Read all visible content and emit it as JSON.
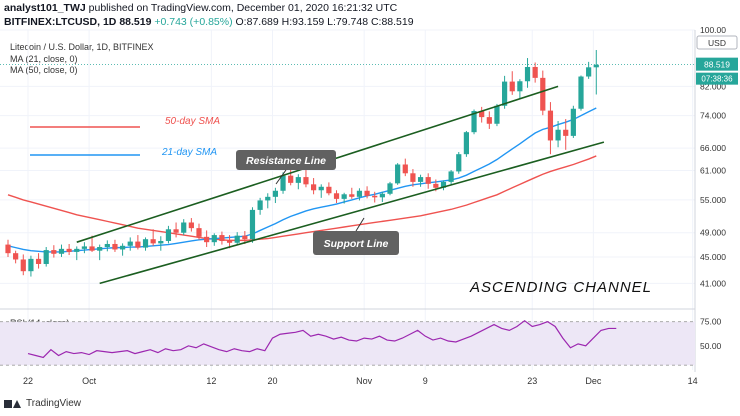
{
  "header": {
    "author": "analyst101_TWJ",
    "published_text": "published on TradingView.com, December 01, 2020 16:21:32 UTC",
    "symbol": "BITFINEX:LTCUSD, 1D",
    "last": "88.519",
    "change": "+0.743 (+0.85%)",
    "ohlc": "O:87.689 H:93.159 L:79.748 C:88.519"
  },
  "legend": {
    "title": "Litecoin / U.S. Dollar, 1D, BITFINEX",
    "ma21": "MA (21, close, 0)",
    "ma50": "MA (50, close, 0)",
    "rsi": "RSI (14, close)"
  },
  "currency_badge": "USD",
  "price_badge": "88.519",
  "time_badge": "07:38:36",
  "footer": {
    "brand": "TradingView"
  },
  "colors": {
    "up": "#26a69a",
    "down": "#ef5350",
    "ma21": "#2196f3",
    "ma50": "#ef5350",
    "rsi": "#9c27b0",
    "rsi_band": "#ede7f6",
    "channel": "#1b5e20",
    "badge": "#2196f3"
  },
  "chart_data": {
    "type": "candlestick",
    "price_range": [
      38,
      100
    ],
    "price_ticks": [
      "100.00",
      "88.519",
      "82.000",
      "74.000",
      "66.000",
      "61.000",
      "55.000",
      "49.000",
      "45.000",
      "41.000"
    ],
    "price_tick_values": [
      100,
      88.519,
      82,
      74,
      66,
      61,
      55,
      49,
      45,
      41
    ],
    "x_labels": [
      {
        "label": "22",
        "bar": 0
      },
      {
        "label": "Oct",
        "bar": 8
      },
      {
        "label": "12",
        "bar": 24
      },
      {
        "label": "20",
        "bar": 32
      },
      {
        "label": "Nov",
        "bar": 44
      },
      {
        "label": "9",
        "bar": 52
      },
      {
        "label": "23",
        "bar": 66
      },
      {
        "label": "Dec",
        "bar": 74
      },
      {
        "label": "14",
        "bar": 87
      }
    ],
    "candles": [
      [
        47.0,
        47.8,
        45.0,
        45.6
      ],
      [
        45.6,
        46.0,
        44.0,
        44.6
      ],
      [
        44.6,
        45.4,
        42.2,
        42.8
      ],
      [
        42.8,
        45.2,
        42.0,
        44.7
      ],
      [
        44.7,
        45.6,
        43.2,
        43.9
      ],
      [
        43.9,
        46.6,
        43.5,
        46.1
      ],
      [
        46.1,
        46.9,
        44.9,
        45.5
      ],
      [
        45.5,
        47.0,
        45.0,
        46.3
      ],
      [
        46.3,
        47.1,
        45.3,
        45.8
      ],
      [
        45.8,
        46.7,
        44.5,
        46.3
      ],
      [
        46.3,
        47.4,
        45.6,
        46.7
      ],
      [
        46.7,
        48.5,
        45.8,
        46.0
      ],
      [
        46.0,
        47.0,
        44.5,
        46.6
      ],
      [
        46.6,
        47.7,
        45.9,
        47.1
      ],
      [
        47.1,
        47.8,
        45.8,
        46.2
      ],
      [
        46.2,
        47.2,
        45.2,
        46.8
      ],
      [
        46.8,
        48.2,
        46.0,
        47.5
      ],
      [
        47.5,
        48.6,
        46.2,
        46.5
      ],
      [
        46.5,
        48.2,
        46.0,
        47.9
      ],
      [
        47.9,
        49.6,
        46.8,
        47.2
      ],
      [
        47.2,
        48.4,
        46.0,
        47.6
      ],
      [
        47.6,
        50.2,
        47.2,
        49.6
      ],
      [
        49.6,
        50.8,
        48.2,
        49.0
      ],
      [
        49.0,
        51.4,
        48.6,
        50.8
      ],
      [
        50.8,
        51.6,
        49.2,
        49.8
      ],
      [
        49.8,
        50.6,
        47.8,
        48.3
      ],
      [
        48.3,
        49.4,
        46.6,
        47.4
      ],
      [
        47.4,
        48.9,
        46.8,
        48.6
      ],
      [
        48.6,
        49.2,
        47.0,
        47.6
      ],
      [
        47.6,
        48.6,
        46.4,
        47.3
      ],
      [
        47.3,
        49.1,
        46.9,
        48.5
      ],
      [
        48.5,
        49.3,
        47.1,
        47.9
      ],
      [
        47.9,
        53.6,
        47.3,
        53.1
      ],
      [
        53.1,
        55.4,
        52.2,
        54.9
      ],
      [
        54.9,
        56.3,
        53.4,
        55.6
      ],
      [
        55.6,
        57.4,
        54.4,
        56.8
      ],
      [
        56.8,
        60.6,
        56.2,
        59.9
      ],
      [
        59.9,
        61.6,
        57.9,
        58.4
      ],
      [
        58.4,
        60.2,
        57.1,
        59.6
      ],
      [
        59.6,
        61.1,
        57.5,
        58.1
      ],
      [
        58.1,
        59.4,
        56.1,
        56.9
      ],
      [
        56.9,
        58.1,
        55.4,
        57.6
      ],
      [
        57.6,
        58.5,
        55.9,
        56.3
      ],
      [
        56.3,
        56.9,
        54.4,
        55.2
      ],
      [
        55.2,
        56.4,
        54.3,
        56.1
      ],
      [
        56.1,
        57.4,
        55.2,
        55.6
      ],
      [
        55.6,
        57.3,
        54.9,
        56.8
      ],
      [
        56.8,
        57.7,
        55.3,
        55.8
      ],
      [
        55.8,
        56.6,
        54.5,
        55.5
      ],
      [
        55.5,
        56.6,
        54.6,
        56.2
      ],
      [
        56.2,
        58.6,
        55.9,
        58.3
      ],
      [
        58.3,
        62.6,
        58.0,
        62.3
      ],
      [
        62.3,
        63.6,
        59.8,
        60.4
      ],
      [
        60.4,
        61.3,
        57.6,
        58.6
      ],
      [
        58.6,
        60.1,
        57.6,
        59.6
      ],
      [
        59.6,
        60.4,
        57.2,
        58.2
      ],
      [
        58.2,
        59.1,
        56.7,
        57.4
      ],
      [
        57.4,
        58.9,
        56.9,
        58.6
      ],
      [
        58.6,
        61.1,
        58.1,
        60.8
      ],
      [
        60.8,
        65.1,
        60.3,
        64.6
      ],
      [
        64.6,
        70.1,
        64.0,
        69.8
      ],
      [
        69.8,
        75.6,
        69.3,
        75.2
      ],
      [
        75.2,
        76.3,
        72.2,
        73.6
      ],
      [
        73.6,
        75.1,
        70.6,
        71.9
      ],
      [
        71.9,
        77.1,
        71.3,
        76.6
      ],
      [
        76.6,
        85.1,
        75.8,
        83.4
      ],
      [
        83.4,
        86.5,
        79.6,
        80.6
      ],
      [
        80.6,
        84.1,
        78.6,
        83.5
      ],
      [
        83.5,
        90.6,
        81.6,
        87.8
      ],
      [
        87.8,
        89.2,
        83.1,
        84.5
      ],
      [
        84.5,
        86.7,
        74.1,
        75.3
      ],
      [
        75.3,
        77.6,
        64.6,
        67.8
      ],
      [
        67.8,
        72.6,
        66.2,
        70.4
      ],
      [
        70.4,
        73.1,
        65.6,
        68.9
      ],
      [
        68.9,
        76.6,
        68.4,
        75.8
      ],
      [
        75.8,
        85.2,
        75.3,
        84.9
      ],
      [
        84.9,
        89.4,
        84.2,
        87.7
      ],
      [
        87.7,
        93.2,
        79.7,
        88.5
      ]
    ],
    "ma21": [
      46.8,
      46.5,
      46.2,
      46.0,
      45.9,
      45.8,
      45.8,
      45.8,
      45.9,
      46.0,
      46.1,
      46.2,
      46.3,
      46.4,
      46.5,
      46.5,
      46.6,
      46.6,
      46.7,
      46.8,
      46.9,
      47.0,
      47.2,
      47.4,
      47.6,
      47.8,
      47.9,
      48.0,
      48.1,
      48.2,
      48.3,
      48.4,
      48.8,
      49.4,
      50.0,
      50.6,
      51.3,
      51.9,
      52.4,
      52.9,
      53.3,
      53.6,
      53.9,
      54.2,
      54.6,
      55.0,
      55.4,
      55.8,
      56.1,
      56.5,
      56.9,
      57.3,
      57.7,
      58.0,
      58.2,
      58.4,
      58.6,
      58.8,
      59.0,
      59.4,
      60.0,
      60.8,
      61.6,
      62.4,
      63.4,
      64.6,
      65.8,
      67.0,
      68.3,
      69.6,
      70.5,
      71.0,
      71.7,
      72.3,
      73.0,
      74.0,
      75.0,
      76.0
    ],
    "ma50": [
      56.0,
      55.5,
      55.0,
      54.6,
      54.2,
      53.8,
      53.4,
      53.0,
      52.6,
      52.2,
      51.9,
      51.6,
      51.3,
      51.0,
      50.7,
      50.4,
      50.1,
      49.8,
      49.6,
      49.4,
      49.2,
      49.0,
      48.8,
      48.6,
      48.4,
      48.2,
      48.0,
      47.9,
      47.8,
      47.7,
      47.7,
      47.7,
      47.8,
      47.9,
      48.0,
      48.2,
      48.4,
      48.6,
      48.8,
      49.0,
      49.2,
      49.4,
      49.6,
      49.8,
      50.0,
      50.2,
      50.4,
      50.6,
      50.8,
      51.0,
      51.2,
      51.4,
      51.6,
      51.8,
      52.0,
      52.3,
      52.6,
      52.9,
      53.2,
      53.6,
      54.0,
      54.5,
      55.0,
      55.5,
      56.0,
      56.7,
      57.4,
      58.1,
      58.8,
      59.5,
      60.2,
      60.8,
      61.3,
      61.8,
      62.3,
      62.9,
      63.5,
      64.2
    ],
    "rsi": [
      42,
      40,
      38,
      46,
      40,
      44,
      42,
      43,
      41,
      45,
      44,
      43,
      44,
      45,
      42,
      44,
      46,
      43,
      47,
      45,
      46,
      50,
      48,
      52,
      49,
      46,
      44,
      47,
      45,
      44,
      47,
      45,
      58,
      62,
      63,
      64,
      66,
      60,
      62,
      60,
      57,
      59,
      56,
      55,
      58,
      57,
      60,
      56,
      55,
      58,
      62,
      66,
      60,
      56,
      58,
      55,
      54,
      57,
      60,
      64,
      68,
      72,
      68,
      66,
      70,
      76,
      70,
      72,
      75,
      70,
      58,
      48,
      52,
      50,
      58,
      66,
      68,
      68
    ],
    "rsi_levels": [
      75,
      50
    ],
    "rsi_tick_labels": [
      "75.00",
      "50.00"
    ],
    "rsi_range": [
      25,
      85
    ],
    "annotations": {
      "resistance": "Resistance Line",
      "support": "Support Line",
      "sma50": "50-day SMA",
      "sma21": "21-day SMA",
      "channel": "ASCENDING CHANNEL"
    },
    "channel_upper": [
      [
        9,
        47.4
      ],
      [
        72,
        82.0
      ]
    ],
    "channel_lower": [
      [
        12,
        41.0
      ],
      [
        78,
        67.4
      ]
    ]
  }
}
